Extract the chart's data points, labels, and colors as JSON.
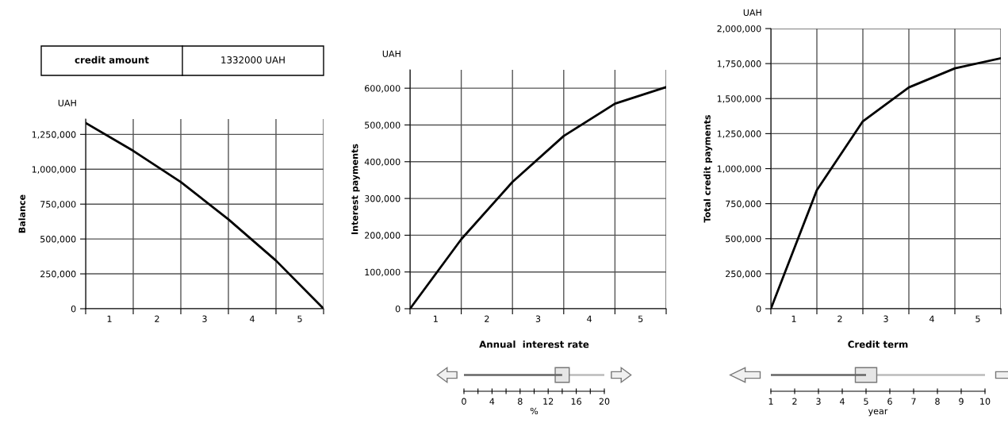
{
  "chart_data": [
    {
      "type": "line",
      "ylabel": "Balance",
      "annotations": [
        "UAH",
        "credit amount",
        "1332000 UAH"
      ],
      "x": [
        0,
        1,
        2,
        3,
        4,
        5
      ],
      "xlim": [
        0,
        5
      ],
      "xticks": [
        {
          "value": 0,
          "label": null
        },
        {
          "value": 0.5,
          "label": "1"
        },
        {
          "value": 1,
          "label": null
        },
        {
          "value": 1.5,
          "label": "2"
        },
        {
          "value": 2,
          "label": null
        },
        {
          "value": 2.5,
          "label": "3"
        },
        {
          "value": 3,
          "label": null
        },
        {
          "value": 3.5,
          "label": "4"
        },
        {
          "value": 4,
          "label": null
        },
        {
          "value": 4.5,
          "label": "5"
        },
        {
          "value": 5,
          "label": null
        }
      ],
      "ylim": [
        0,
        1360000
      ],
      "yticks": [
        {
          "value": 0,
          "label": "0"
        },
        {
          "value": 250000,
          "label": "250,000"
        },
        {
          "value": 500000,
          "label": "500,000"
        },
        {
          "value": 750000,
          "label": "750,000"
        },
        {
          "value": 1000000,
          "label": "1,000,000"
        },
        {
          "value": 1250000,
          "label": "1,250,000"
        }
      ],
      "grid": true,
      "series": [
        {
          "color": "#000000",
          "values": [
            1332000,
            1132000,
            908000,
            641000,
            345000,
            0
          ]
        }
      ]
    },
    {
      "type": "line",
      "ylabel": "Interest payments",
      "annotations": [
        "UAH"
      ],
      "x": [
        0,
        1,
        2,
        3,
        4,
        5
      ],
      "xlim": [
        0,
        5
      ],
      "xticks": [
        {
          "value": 0,
          "label": null
        },
        {
          "value": 0.5,
          "label": "1"
        },
        {
          "value": 1,
          "label": null
        },
        {
          "value": 1.5,
          "label": "2"
        },
        {
          "value": 2,
          "label": null
        },
        {
          "value": 2.5,
          "label": "3"
        },
        {
          "value": 3,
          "label": null
        },
        {
          "value": 3.5,
          "label": "4"
        },
        {
          "value": 4,
          "label": null
        },
        {
          "value": 4.5,
          "label": "5"
        },
        {
          "value": 5,
          "label": null
        }
      ],
      "ylim": [
        0,
        650000
      ],
      "yticks": [
        {
          "value": 0,
          "label": "0"
        },
        {
          "value": 100000,
          "label": "100,000"
        },
        {
          "value": 200000,
          "label": "200,000"
        },
        {
          "value": 300000,
          "label": "300,000"
        },
        {
          "value": 400000,
          "label": "400,000"
        },
        {
          "value": 500000,
          "label": "500,000"
        },
        {
          "value": 600000,
          "label": "600,000"
        }
      ],
      "grid": true,
      "series": [
        {
          "color": "#000000",
          "values": [
            0,
            189000,
            345000,
            470000,
            558000,
            603000
          ]
        }
      ]
    },
    {
      "type": "line",
      "ylabel": "Total credit payments",
      "annotations": [
        "UAH"
      ],
      "x": [
        0,
        1,
        2,
        3,
        4,
        5
      ],
      "xlim": [
        0,
        5
      ],
      "xticks": [
        {
          "value": 0,
          "label": null
        },
        {
          "value": 0.5,
          "label": "1"
        },
        {
          "value": 1,
          "label": null
        },
        {
          "value": 1.5,
          "label": "2"
        },
        {
          "value": 2,
          "label": null
        },
        {
          "value": 2.5,
          "label": "3"
        },
        {
          "value": 3,
          "label": null
        },
        {
          "value": 3.5,
          "label": "4"
        },
        {
          "value": 4,
          "label": null
        },
        {
          "value": 4.5,
          "label": "5"
        },
        {
          "value": 5,
          "label": null
        }
      ],
      "ylim": [
        0,
        2000000
      ],
      "yticks": [
        {
          "value": 0,
          "label": "0"
        },
        {
          "value": 250000,
          "label": "250,000"
        },
        {
          "value": 500000,
          "label": "500,000"
        },
        {
          "value": 750000,
          "label": "750,000"
        },
        {
          "value": 1000000,
          "label": "1,000,000"
        },
        {
          "value": 1250000,
          "label": "1,250,000"
        },
        {
          "value": 1500000,
          "label": "1,500,000"
        },
        {
          "value": 1750000,
          "label": "1,750,000"
        },
        {
          "value": 2000000,
          "label": "2,000,000"
        }
      ],
      "grid": true,
      "series": [
        {
          "color": "#000000",
          "values": [
            0,
            847000,
            1338000,
            1580000,
            1716000,
            1788000
          ]
        }
      ]
    },
    {
      "type": "bar",
      "orientation": "horizontal",
      "categories": [
        null
      ],
      "color": "#666666",
      "title": "Annual  interest rate",
      "xlabel": "%",
      "xlim": [
        0,
        20
      ],
      "values": [
        14
      ],
      "xticks": [
        0,
        {
          "value": 2,
          "label": null
        },
        4,
        {
          "value": 6,
          "label": null
        },
        8,
        {
          "value": 10,
          "label": null
        },
        12,
        {
          "value": 14,
          "label": null
        },
        16,
        {
          "value": 18,
          "label": null
        },
        20
      ]
    },
    {
      "type": "bar",
      "orientation": "horizontal",
      "categories": [
        null
      ],
      "color": "#666666",
      "title": "Credit term",
      "xlabel": "year",
      "xlim": [
        1,
        10
      ],
      "base": [
        1
      ],
      "values": [
        4
      ],
      "xticks": [
        1,
        2,
        3,
        4,
        5,
        6,
        7,
        8,
        9,
        10
      ]
    }
  ]
}
